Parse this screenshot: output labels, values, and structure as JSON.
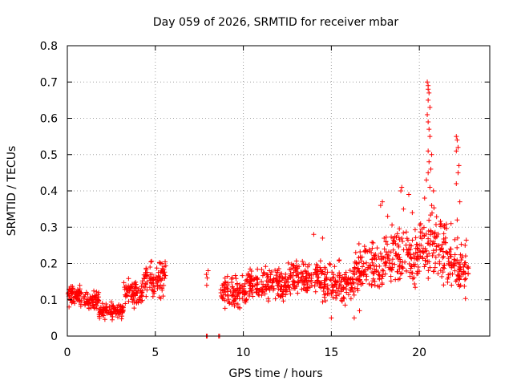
{
  "chart_data": {
    "type": "scatter",
    "title": "Day 059 of 2026, SRMTID for receiver mbar",
    "xlabel": "GPS time / hours",
    "ylabel": "SRMTID / TECUs",
    "xlim": [
      0,
      24
    ],
    "ylim": [
      0,
      0.8
    ],
    "x_ticks": [
      0,
      5,
      10,
      15,
      20
    ],
    "x_tick_labels": [
      "0",
      "5",
      "10",
      "15",
      "20"
    ],
    "y_ticks": [
      0,
      0.1,
      0.2,
      0.3,
      0.4,
      0.5,
      0.6,
      0.7,
      0.8
    ],
    "y_tick_labels": [
      "0",
      "0.1",
      "0.2",
      "0.3",
      "0.4",
      "0.5",
      "0.6",
      "0.7",
      "0.8"
    ],
    "grid": true,
    "marker": "+",
    "colors": {
      "series": "#ff0000",
      "axis": "#000000",
      "grid": "#a0a0a0"
    },
    "series": [
      {
        "name": "SRMTID",
        "segments": [
          {
            "x_start": 0.0,
            "x_end": 1.0,
            "center": 0.11,
            "spread": 0.04
          },
          {
            "x_start": 1.0,
            "x_end": 1.8,
            "center": 0.1,
            "spread": 0.035
          },
          {
            "x_start": 1.8,
            "x_end": 3.2,
            "center": 0.07,
            "spread": 0.03
          },
          {
            "x_start": 3.2,
            "x_end": 4.3,
            "center": 0.12,
            "spread": 0.05
          },
          {
            "x_start": 4.3,
            "x_end": 5.6,
            "center": 0.16,
            "spread": 0.07
          },
          {
            "x_start": 8.7,
            "x_end": 10.2,
            "center": 0.12,
            "spread": 0.06
          },
          {
            "x_start": 10.2,
            "x_end": 12.5,
            "center": 0.14,
            "spread": 0.06
          },
          {
            "x_start": 12.5,
            "x_end": 14.5,
            "center": 0.16,
            "spread": 0.07
          },
          {
            "x_start": 14.5,
            "x_end": 16.3,
            "center": 0.14,
            "spread": 0.08
          },
          {
            "x_start": 16.3,
            "x_end": 18.0,
            "center": 0.19,
            "spread": 0.09
          },
          {
            "x_start": 18.0,
            "x_end": 20.0,
            "center": 0.22,
            "spread": 0.12
          },
          {
            "x_start": 20.0,
            "x_end": 21.6,
            "center": 0.25,
            "spread": 0.14
          },
          {
            "x_start": 21.6,
            "x_end": 22.8,
            "center": 0.19,
            "spread": 0.1
          }
        ],
        "points": [
          [
            7.9,
            0.17
          ],
          [
            7.95,
            0.16
          ],
          [
            8.0,
            0.18
          ],
          [
            7.92,
            0.14
          ],
          [
            7.9,
            0.0
          ],
          [
            7.95,
            0.0
          ],
          [
            8.6,
            0.0
          ],
          [
            8.65,
            0.0
          ],
          [
            20.45,
            0.7
          ],
          [
            20.5,
            0.69
          ],
          [
            20.5,
            0.68
          ],
          [
            20.55,
            0.67
          ],
          [
            20.5,
            0.65
          ],
          [
            20.6,
            0.63
          ],
          [
            20.45,
            0.61
          ],
          [
            20.5,
            0.59
          ],
          [
            20.55,
            0.57
          ],
          [
            20.6,
            0.55
          ],
          [
            20.5,
            0.51
          ],
          [
            20.7,
            0.5
          ],
          [
            20.55,
            0.48
          ],
          [
            20.65,
            0.46
          ],
          [
            20.5,
            0.45
          ],
          [
            20.4,
            0.43
          ],
          [
            20.6,
            0.41
          ],
          [
            20.8,
            0.4
          ],
          [
            20.3,
            0.38
          ],
          [
            20.7,
            0.36
          ],
          [
            22.1,
            0.55
          ],
          [
            22.15,
            0.54
          ],
          [
            22.2,
            0.52
          ],
          [
            22.1,
            0.51
          ],
          [
            22.25,
            0.47
          ],
          [
            22.2,
            0.45
          ],
          [
            22.1,
            0.42
          ],
          [
            22.3,
            0.37
          ],
          [
            22.15,
            0.32
          ],
          [
            21.8,
            0.31
          ],
          [
            19.0,
            0.41
          ],
          [
            18.95,
            0.4
          ],
          [
            19.4,
            0.39
          ],
          [
            19.1,
            0.35
          ],
          [
            19.6,
            0.34
          ],
          [
            17.9,
            0.37
          ],
          [
            17.8,
            0.36
          ],
          [
            18.2,
            0.33
          ],
          [
            14.0,
            0.28
          ],
          [
            14.5,
            0.27
          ],
          [
            16.3,
            0.05
          ],
          [
            15.0,
            0.05
          ],
          [
            16.6,
            0.07
          ],
          [
            18.5,
            0.27
          ],
          [
            22.6,
            0.25
          ]
        ]
      }
    ]
  }
}
